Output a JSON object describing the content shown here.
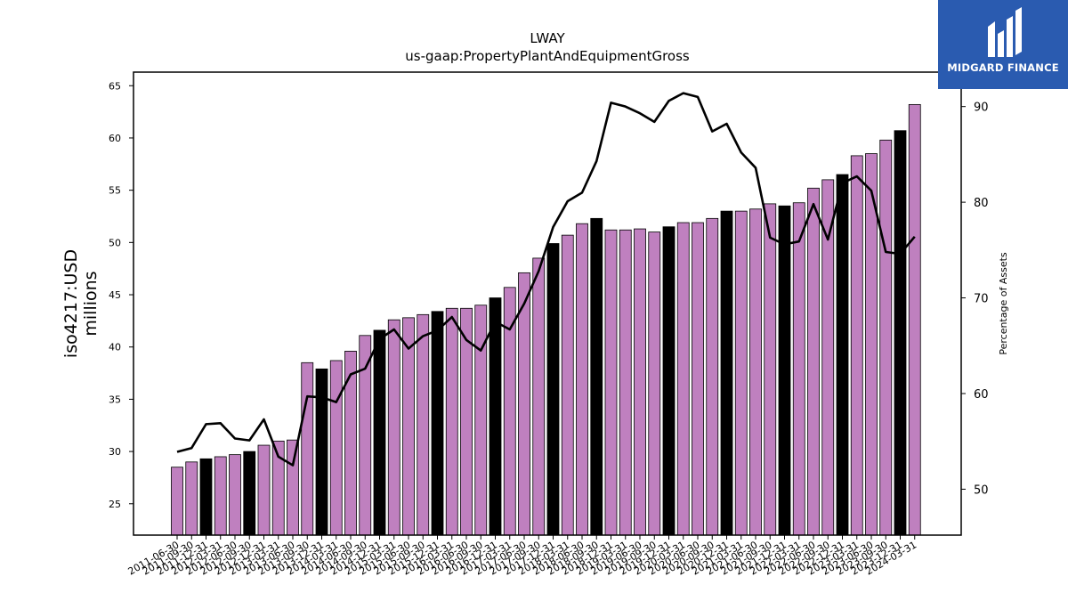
{
  "chart_data": {
    "type": "bar",
    "title": "LWAY",
    "subtitle": "us-gaap:PropertyPlantAndEquipmentGross",
    "ylabel_line1": "iso4217:USD",
    "ylabel_line2": "millions",
    "y2label": "Percentage of Assets",
    "ylim": [
      22,
      66.3
    ],
    "y2lim": [
      45.2,
      93.6
    ],
    "yticks": [
      25,
      30,
      35,
      40,
      45,
      50,
      55,
      60,
      65
    ],
    "y2ticks": [
      50,
      60,
      70,
      80,
      90
    ],
    "categories": [
      "2011-06-30",
      "2011-09-30",
      "2011-12-31",
      "2012-03-31",
      "2012-06-30",
      "2012-09-30",
      "2012-12-31",
      "2013-03-31",
      "2013-06-30",
      "2013-09-30",
      "2013-12-31",
      "2014-03-31",
      "2014-06-30",
      "2014-09-30",
      "2014-12-31",
      "2015-03-31",
      "2015-06-30",
      "2015-09-30",
      "2015-12-31",
      "2016-03-31",
      "2016-06-30",
      "2016-09-30",
      "2016-12-31",
      "2017-03-31",
      "2017-06-30",
      "2017-09-30",
      "2017-12-31",
      "2018-03-31",
      "2018-06-30",
      "2018-09-30",
      "2018-12-31",
      "2019-03-31",
      "2019-06-30",
      "2019-09-30",
      "2019-12-31",
      "2020-03-31",
      "2020-06-30",
      "2020-09-30",
      "2020-12-31",
      "2021-03-31",
      "2021-06-30",
      "2021-09-30",
      "2021-12-31",
      "2022-03-31",
      "2022-06-30",
      "2022-09-30",
      "2022-12-31",
      "2023-03-31",
      "2023-06-30",
      "2023-09-30",
      "2023-12-31",
      "2024-03-31"
    ],
    "values": [
      28.5,
      29.0,
      29.3,
      29.5,
      29.7,
      30.0,
      30.6,
      31.0,
      31.1,
      38.5,
      37.9,
      38.7,
      39.6,
      41.1,
      41.6,
      42.6,
      42.8,
      43.1,
      43.4,
      43.7,
      43.7,
      44.0,
      44.7,
      45.7,
      47.1,
      48.5,
      49.9,
      50.7,
      51.8,
      52.3,
      51.2,
      51.2,
      51.3,
      51.0,
      51.5,
      51.9,
      51.9,
      52.3,
      53.0,
      53.0,
      53.2,
      53.7,
      53.5,
      53.8,
      55.2,
      56.0,
      56.5,
      58.3,
      58.5,
      59.8,
      60.7,
      63.2
    ],
    "annual_flags": [
      false,
      false,
      true,
      false,
      false,
      true,
      false,
      false,
      false,
      false,
      true,
      false,
      false,
      false,
      true,
      false,
      false,
      false,
      true,
      false,
      false,
      false,
      true,
      false,
      false,
      false,
      true,
      false,
      false,
      true,
      false,
      false,
      false,
      false,
      true,
      false,
      false,
      false,
      true,
      false,
      false,
      false,
      true,
      false,
      false,
      false,
      true,
      false,
      false,
      false,
      true,
      false
    ],
    "pct_assets": [
      53.9,
      54.3,
      56.8,
      56.9,
      55.3,
      55.1,
      57.3,
      53.4,
      52.5,
      59.7,
      59.6,
      59.1,
      62.0,
      62.6,
      65.7,
      66.7,
      64.7,
      66.0,
      66.6,
      68.0,
      65.6,
      64.5,
      67.5,
      66.7,
      69.4,
      72.8,
      77.4,
      80.1,
      81.0,
      84.3,
      90.4,
      90.0,
      89.3,
      88.4,
      90.6,
      91.4,
      91.0,
      87.4,
      88.2,
      85.2,
      83.6,
      76.3,
      75.6,
      75.9,
      79.8,
      76.1,
      82.0,
      82.7,
      81.2,
      74.8,
      74.6,
      76.4
    ],
    "colors": {
      "quarter_bar": "#bf80bf",
      "annual_bar": "#000000",
      "bar_edge": "#000000",
      "line": "#000000"
    },
    "grid": false
  },
  "logo": {
    "text": "MIDGARD FINANCE",
    "background": "#2a5bb0"
  }
}
